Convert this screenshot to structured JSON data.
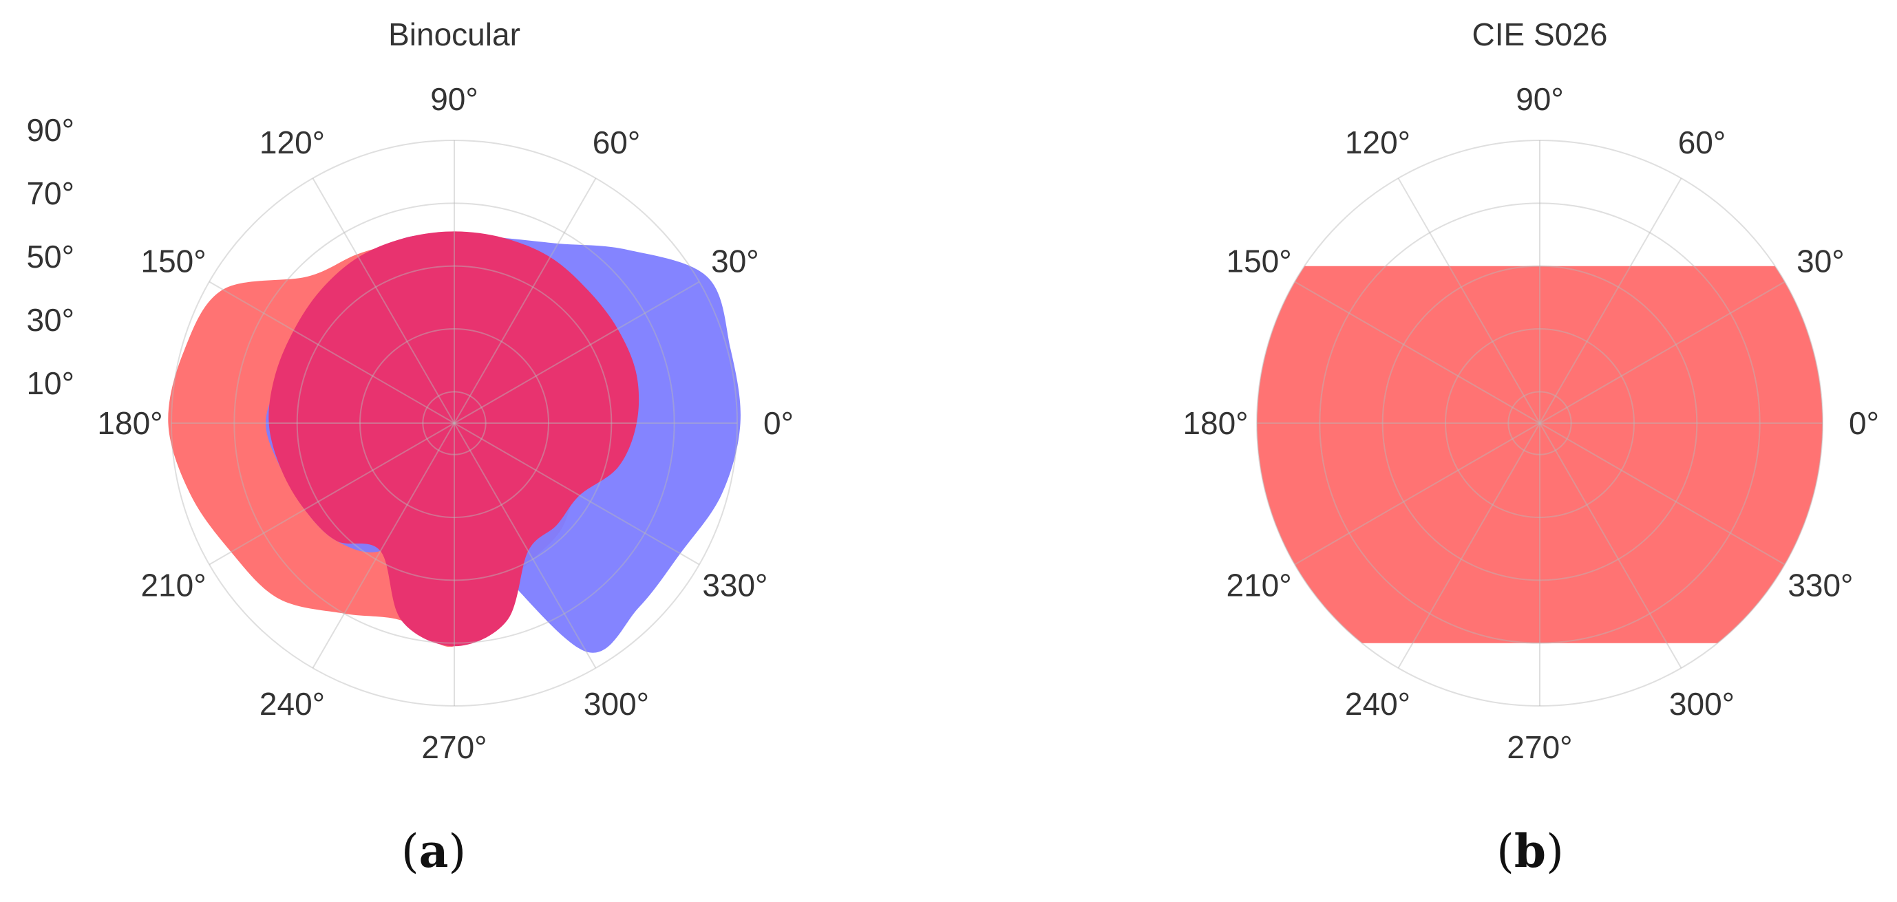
{
  "chart_data": [
    {
      "type": "polar-area",
      "panel": "a",
      "caption_letter": "a",
      "title": "Binocular",
      "angular_ticks": [
        "0°",
        "30°",
        "60°",
        "90°",
        "120°",
        "150°",
        "180°",
        "210°",
        "240°",
        "270°",
        "300°",
        "330°"
      ],
      "radial_ticks": [
        "10°",
        "30°",
        "50°",
        "70°",
        "90°"
      ],
      "radial_range": [
        0,
        90
      ],
      "grid": true,
      "series": [
        {
          "color": "#ff6b6b",
          "opacity": 0.95,
          "angles": [
            0,
            15,
            30,
            45,
            60,
            75,
            90,
            105,
            120,
            135,
            150,
            165,
            180,
            195,
            210,
            225,
            240,
            255,
            270,
            285,
            300,
            315,
            330,
            345
          ],
          "r": [
            40,
            40,
            43,
            48,
            58,
            60,
            61,
            60,
            62,
            66,
            85,
            89,
            91,
            87,
            82,
            79,
            70,
            65,
            71,
            55,
            50,
            48,
            44,
            42
          ]
        },
        {
          "color": "#7d7dff",
          "opacity": 0.95,
          "angles": [
            0,
            15,
            30,
            45,
            60,
            75,
            90,
            105,
            120,
            135,
            150,
            165,
            180,
            195,
            210,
            225,
            240,
            255,
            270,
            285,
            300,
            315,
            330,
            345
          ],
          "r": [
            91,
            91,
            93,
            78,
            66,
            61,
            60,
            61,
            59,
            56,
            55,
            57,
            60,
            57,
            55,
            53,
            47,
            30,
            36,
            46,
            84,
            83,
            83,
            88
          ]
        },
        {
          "color": "#e8336f",
          "opacity": 1.0,
          "angles": [
            0,
            15,
            30,
            45,
            60,
            75,
            90,
            105,
            120,
            135,
            150,
            165,
            180,
            195,
            210,
            225,
            240,
            255,
            270,
            285,
            300,
            315,
            330,
            345
          ],
          "r": [
            58,
            60,
            60,
            60,
            61,
            61,
            61,
            61,
            61,
            60,
            59,
            59,
            59,
            57,
            55,
            53,
            47,
            65,
            71,
            65,
            47,
            46,
            46,
            54
          ]
        }
      ]
    },
    {
      "type": "polar-area",
      "panel": "b",
      "caption_letter": "b",
      "title": "CIE S026",
      "angular_ticks": [
        "0°",
        "30°",
        "60°",
        "90°",
        "120°",
        "150°",
        "180°",
        "210°",
        "240°",
        "270°",
        "300°",
        "330°"
      ],
      "radial_range": [
        0,
        90
      ],
      "grid": true,
      "series": [
        {
          "color": "#ff6b6b",
          "opacity": 0.95,
          "upper_limit": 50,
          "lower_limit": 70,
          "horizontal_extent": 90
        }
      ]
    }
  ]
}
